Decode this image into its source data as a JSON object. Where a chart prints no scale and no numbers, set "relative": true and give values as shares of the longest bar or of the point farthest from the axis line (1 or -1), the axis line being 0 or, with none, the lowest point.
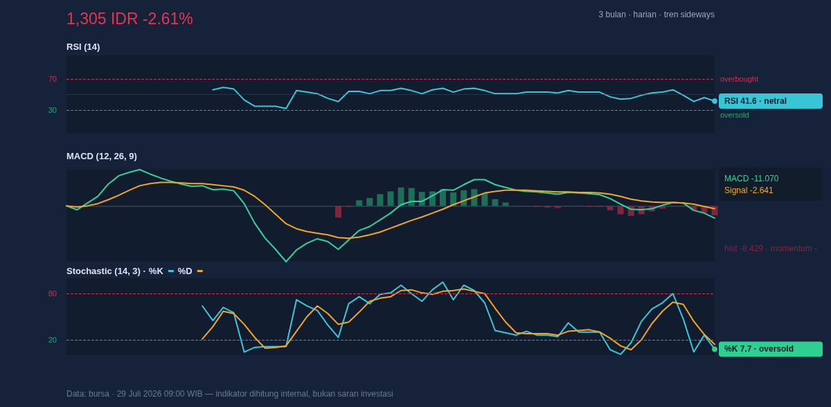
{
  "chart_data": [
    {
      "type": "other",
      "title": "1,305 IDR -2.61%",
      "subtitle": "3 bulan · harian · tren sideways",
      "annotations": [
        "Data: bursa · 29 Juli 2026 09:00 WIB — indikator dihitung internal, bukan saran investasi"
      ]
    },
    {
      "type": "line",
      "title": "RSI (14)",
      "categories": [
        null,
        null,
        null,
        null,
        null,
        null,
        null,
        null,
        null,
        null,
        null,
        null,
        null,
        null,
        null,
        null,
        null,
        null,
        null,
        null,
        null,
        null,
        null,
        null,
        null,
        null,
        null,
        null,
        null,
        null,
        null,
        null,
        null,
        null,
        null,
        null,
        null,
        null,
        null,
        null,
        null,
        null,
        null,
        null,
        null,
        null,
        null,
        null,
        null,
        null,
        null,
        null,
        null,
        null,
        null,
        null,
        null,
        null,
        null,
        null,
        null,
        null,
        null
      ],
      "series": [
        {
          "color": "#3cc8d8",
          "values": [
            null,
            null,
            null,
            null,
            null,
            null,
            null,
            null,
            null,
            null,
            null,
            null,
            null,
            null,
            56,
            59,
            57,
            43,
            35,
            35,
            35,
            32,
            55,
            53,
            51,
            45,
            41,
            54,
            54,
            51,
            55,
            55,
            58,
            55,
            51,
            56,
            58,
            53,
            57,
            58,
            55,
            51,
            51,
            51,
            53,
            53,
            53,
            52,
            55,
            53,
            53,
            53,
            47,
            44,
            45,
            49,
            52,
            53,
            56,
            49,
            41,
            46,
            41.6
          ]
        }
      ],
      "ylim": [
        0,
        100
      ],
      "yticks": [
        30,
        70
      ],
      "tick_labels": "y",
      "ref_lines": [
        {
          "axis": "y",
          "value": 70,
          "label": "overbought",
          "color": "#c73452",
          "line_style": "dashed"
        },
        {
          "axis": "y",
          "value": 30,
          "label": "oversold",
          "color": "#2fa676",
          "line_style": "dashed"
        },
        {
          "axis": "y",
          "value": 50,
          "color": "#3a4a60",
          "line_style": "dotted"
        }
      ],
      "annotations": [
        "RSI 41.6 · netral"
      ]
    },
    {
      "type": "line",
      "title": "MACD (12, 26, 9)",
      "relative": true,
      "tick_labels": false,
      "categories": [
        null,
        null,
        null,
        null,
        null,
        null,
        null,
        null,
        null,
        null,
        null,
        null,
        null,
        null,
        null,
        null,
        null,
        null,
        null,
        null,
        null,
        null,
        null,
        null,
        null,
        null,
        null,
        null,
        null,
        null,
        null,
        null,
        null,
        null,
        null,
        null,
        null,
        null,
        null,
        null,
        null,
        null,
        null,
        null,
        null,
        null,
        null,
        null,
        null,
        null,
        null,
        null,
        null,
        null,
        null,
        null,
        null,
        null,
        null,
        null,
        null,
        null,
        null
      ],
      "series": [
        {
          "color": "#34d399",
          "values": [
            0,
            -0.07,
            0.05,
            0.17,
            0.39,
            0.54,
            0.6,
            0.65,
            0.57,
            0.5,
            0.44,
            0.39,
            0.35,
            0.36,
            0.29,
            0.3,
            0.27,
            0.04,
            -0.31,
            -0.58,
            -0.78,
            -1,
            -0.79,
            -0.67,
            -0.59,
            -0.64,
            -0.78,
            -0.61,
            -0.44,
            -0.37,
            -0.25,
            -0.13,
            0.02,
            0.08,
            0.08,
            0.18,
            0.29,
            0.28,
            0.38,
            0.47,
            0.47,
            0.38,
            0.33,
            0.28,
            0.26,
            0.25,
            0.23,
            0.21,
            0.24,
            0.23,
            0.22,
            0.2,
            0.13,
            0.03,
            -0.06,
            -0.07,
            -0.05,
            0.01,
            0.06,
            0.05,
            -0.08,
            -0.13,
            -0.22
          ]
        },
        {
          "color": "#f5a623",
          "values": [
            0,
            -0.02,
            0,
            0.04,
            0.11,
            0.19,
            0.28,
            0.36,
            0.4,
            0.42,
            0.42,
            0.41,
            0.4,
            0.4,
            0.38,
            0.36,
            0.34,
            0.28,
            0.17,
            0.02,
            -0.15,
            -0.32,
            -0.41,
            -0.46,
            -0.49,
            -0.52,
            -0.57,
            -0.58,
            -0.56,
            -0.52,
            -0.47,
            -0.4,
            -0.33,
            -0.26,
            -0.2,
            -0.13,
            -0.06,
            0.02,
            0.09,
            0.16,
            0.23,
            0.26,
            0.28,
            0.28,
            0.28,
            0.27,
            0.26,
            0.25,
            0.25,
            0.24,
            0.24,
            0.23,
            0.21,
            0.17,
            0.12,
            0.09,
            0.07,
            0.06,
            0.06,
            0.05,
            0.03,
            -0.01,
            -0.05
          ]
        },
        {
          "type": "bar",
          "color": "#1f6e58",
          "values": [
            null,
            null,
            null,
            null,
            null,
            null,
            null,
            null,
            null,
            null,
            null,
            null,
            null,
            null,
            null,
            null,
            null,
            null,
            null,
            null,
            null,
            null,
            null,
            null,
            null,
            null,
            null,
            null,
            0.1,
            0.14,
            0.21,
            0.26,
            0.33,
            0.32,
            0.25,
            0.26,
            0.3,
            0.24,
            0.28,
            0.3,
            0.23,
            0.12,
            0.06,
            null,
            null,
            null,
            null,
            null,
            null,
            null,
            null,
            null,
            null,
            null,
            null,
            null,
            null,
            null,
            null,
            null,
            null,
            null,
            null
          ]
        },
        {
          "type": "bar",
          "color": "#7c2640",
          "values": [
            null,
            null,
            null,
            null,
            null,
            null,
            null,
            null,
            null,
            null,
            null,
            null,
            null,
            null,
            null,
            null,
            null,
            null,
            null,
            null,
            null,
            null,
            null,
            null,
            null,
            null,
            -0.21,
            -0.02,
            null,
            null,
            null,
            null,
            null,
            null,
            null,
            null,
            null,
            null,
            null,
            null,
            null,
            null,
            null,
            -0.01,
            -0.01,
            -0.02,
            -0.03,
            -0.04,
            -0.01,
            -0.01,
            -0.02,
            -0.02,
            -0.08,
            -0.15,
            -0.18,
            -0.15,
            -0.1,
            -0.05,
            null,
            -0.01,
            -0.08,
            -0.12,
            -0.17
          ]
        }
      ],
      "annotations": [
        "MACD -11.070",
        "Signal -2.641",
        "hist -8.429 · momentum -"
      ]
    },
    {
      "type": "line",
      "title": "Stochastic (14, 3) ·",
      "legend": "top left",
      "categories": [
        null,
        null,
        null,
        null,
        null,
        null,
        null,
        null,
        null,
        null,
        null,
        null,
        null,
        null,
        null,
        null,
        null,
        null,
        null,
        null,
        null,
        null,
        null,
        null,
        null,
        null,
        null,
        null,
        null,
        null,
        null,
        null,
        null,
        null,
        null,
        null,
        null,
        null,
        null,
        null,
        null,
        null,
        null,
        null,
        null,
        null,
        null,
        null,
        null,
        null,
        null,
        null,
        null,
        null,
        null,
        null,
        null,
        null,
        null,
        null,
        null,
        null,
        null
      ],
      "series": [
        {
          "name": "%K",
          "color": "#3cc8d8",
          "values": [
            null,
            null,
            null,
            null,
            null,
            null,
            null,
            null,
            null,
            null,
            null,
            null,
            null,
            64,
            45,
            62,
            55,
            4,
            10,
            11,
            11,
            11,
            72,
            64,
            58,
            39,
            23,
            67,
            76,
            67,
            79,
            81,
            91,
            80,
            70,
            85,
            95,
            72,
            91,
            84,
            68,
            32,
            29,
            26,
            31,
            26,
            26,
            24,
            42,
            30,
            30,
            30,
            7,
            1,
            16,
            44,
            60,
            68,
            80,
            47,
            4,
            26,
            7.7
          ]
        },
        {
          "name": "%D",
          "color": "#f5a623",
          "values": [
            null,
            null,
            null,
            null,
            null,
            null,
            null,
            null,
            null,
            null,
            null,
            null,
            null,
            21,
            37,
            57,
            54,
            40,
            23,
            9,
            10,
            12,
            31,
            50,
            64,
            54,
            40,
            43,
            56,
            70,
            74,
            76,
            84,
            85,
            81,
            79,
            83,
            84,
            86,
            83,
            80,
            61,
            43,
            29,
            28,
            28,
            28,
            26,
            31,
            32,
            33,
            30,
            22,
            12,
            7,
            20,
            41,
            57,
            69,
            66,
            44,
            27,
            14
          ]
        }
      ],
      "ylim": [
        0,
        100
      ],
      "yticks": [
        20,
        80
      ],
      "tick_labels": "y",
      "ref_lines": [
        {
          "axis": "y",
          "value": 80,
          "color": "#c73452",
          "line_style": "dashed"
        },
        {
          "axis": "y",
          "value": 20,
          "color": "#2fa676",
          "line_style": "dashed"
        }
      ],
      "annotations": [
        "%K 7.7 · oversold"
      ]
    }
  ]
}
